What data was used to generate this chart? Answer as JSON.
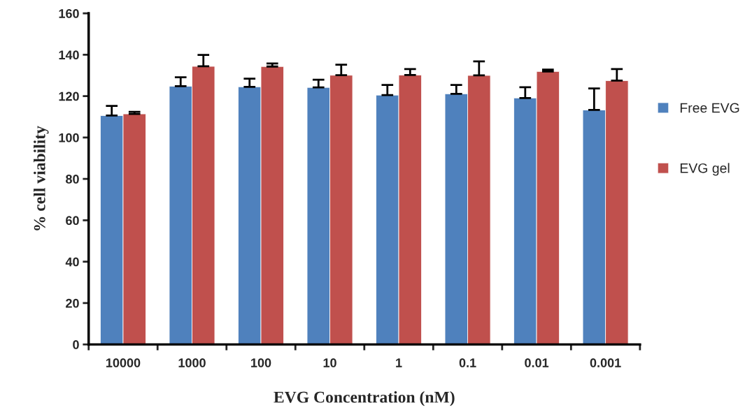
{
  "chart_data": {
    "type": "bar",
    "xlabel": "EVG Concentration (nM)",
    "ylabel": "% cell viability",
    "categories": [
      "10000",
      "1000",
      "100",
      "10",
      "1",
      "0.1",
      "0.01",
      "0.001"
    ],
    "series": [
      {
        "name": "Free EVG",
        "color": "#4f81bd",
        "values": [
          110.6,
          124.8,
          124.5,
          124.2,
          120.5,
          121.1,
          119.1,
          113.3
        ],
        "errors": [
          [
            110.6,
            115.3
          ],
          [
            124.8,
            129.1
          ],
          [
            124.5,
            128.4
          ],
          [
            124.2,
            127.9
          ],
          [
            120.5,
            125.4
          ],
          [
            121.1,
            125.4
          ],
          [
            119.1,
            124.3
          ],
          [
            113.3,
            123.7
          ]
        ]
      },
      {
        "name": "EVG gel",
        "color": "#c0504d",
        "values": [
          111.4,
          134.4,
          134.3,
          130.1,
          130.2,
          130.0,
          131.9,
          127.5
        ],
        "errors": [
          [
            111.4,
            112.4
          ],
          [
            134.4,
            139.9
          ],
          [
            134.3,
            135.8
          ],
          [
            130.1,
            135.2
          ],
          [
            130.2,
            133.1
          ],
          [
            130.0,
            136.8
          ],
          [
            131.9,
            132.8
          ],
          [
            127.5,
            133.1
          ]
        ]
      }
    ],
    "ylim": [
      0,
      160
    ],
    "yticks": [
      0,
      20,
      40,
      60,
      80,
      100,
      120,
      140,
      160
    ],
    "grid": false,
    "legend": "right"
  }
}
